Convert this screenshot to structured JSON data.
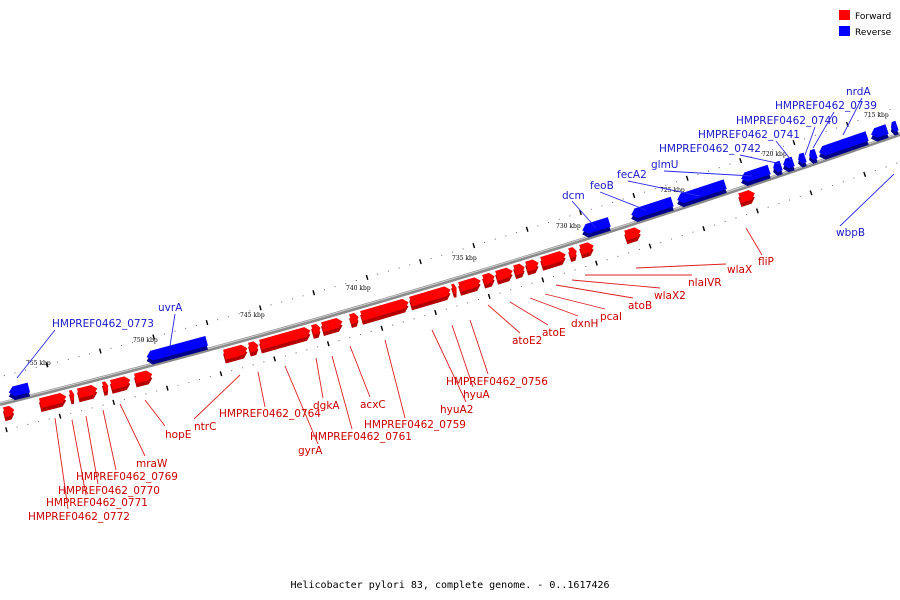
{
  "colors": {
    "forward": "#ff0000",
    "reverse": "#0000ff",
    "forward_label": "#cc0000",
    "reverse_label": "#1a1acc"
  },
  "legend": {
    "forward": "Forward",
    "reverse": "Reverse"
  },
  "caption": "Helicobacter pylori 83, complete genome. - 0..1617426",
  "scale_labels": [
    "755 kbp",
    "750 kbp",
    "745 kbp",
    "740 kbp",
    "735 kbp",
    "730 kbp",
    "725 kbp",
    "720 kbp",
    "715 kbp"
  ],
  "reverse_genes": [
    "HMPREF0462_0773",
    "uvrA",
    "dcm",
    "feoB",
    "fecA2",
    "glmU",
    "HMPREF0462_0742",
    "HMPREF0462_0741",
    "HMPREF0462_0740",
    "HMPREF0462_0739",
    "nrdA",
    "wbpB"
  ],
  "forward_genes": [
    "HMPREF0462_0772",
    "HMPREF0462_0771",
    "HMPREF0462_0770",
    "HMPREF0462_0769",
    "mraW",
    "hopE",
    "ntrC",
    "HMPREF0462_0764",
    "gyrA",
    "dgkA",
    "HMPREF0462_0761",
    "acxC",
    "HMPREF0462_0759",
    "hyuA2",
    "hyuA",
    "HMPREF0462_0756",
    "atoE2",
    "atoE",
    "dxnH",
    "pcaI",
    "atoB",
    "wlaX2",
    "nlaIVR",
    "wlaX",
    "fliP"
  ]
}
